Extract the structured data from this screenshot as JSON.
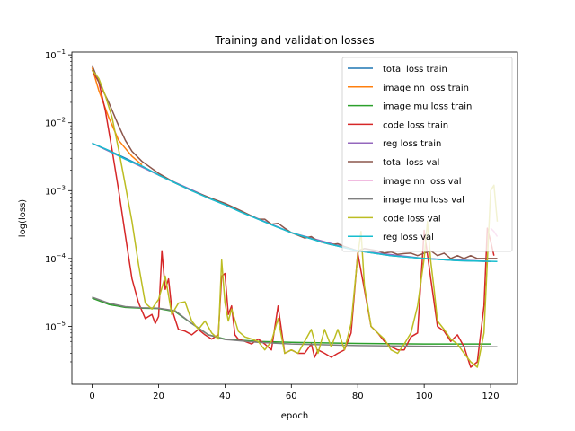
{
  "chart_data": {
    "type": "line",
    "title": "Training and validation losses",
    "xlabel": "epoch",
    "ylabel": "log(loss)",
    "yscale": "log",
    "xlim": [
      -6.1,
      128.1
    ],
    "ylim": [
      1.4e-06,
      0.11
    ],
    "x_ticks": [
      0,
      20,
      40,
      60,
      80,
      100,
      120
    ],
    "y_ticks": [
      {
        "value": 0.1,
        "base": "10",
        "exp": "−1"
      },
      {
        "value": 0.01,
        "base": "10",
        "exp": "−2"
      },
      {
        "value": 0.001,
        "base": "10",
        "exp": "−3"
      },
      {
        "value": 0.0001,
        "base": "10",
        "exp": "−4"
      },
      {
        "value": 1e-05,
        "base": "10",
        "exp": "−5"
      }
    ],
    "grid": false,
    "legend_position": "upper-right",
    "series": [
      {
        "name": "total loss train",
        "color": "#1f77b4",
        "x": [
          0,
          5,
          10,
          15,
          20,
          25,
          30,
          35,
          40,
          45,
          50,
          55,
          60,
          70,
          80,
          90,
          100,
          110,
          120
        ],
        "y": [
          0.005,
          0.0039,
          0.003,
          0.0023,
          0.0017,
          0.0013,
          0.001,
          0.00078,
          0.00062,
          0.00048,
          0.00038,
          0.0003,
          0.00024,
          0.00017,
          0.00013,
          0.00011,
          0.0001,
          9.3e-05,
          9e-05
        ]
      },
      {
        "name": "image nn loss train",
        "color": "#ff7f0e",
        "x": [
          0,
          2,
          5,
          8,
          10,
          12,
          15
        ],
        "y": [
          0.065,
          0.03,
          0.012,
          0.0055,
          0.0042,
          0.0032,
          0.0024
        ]
      },
      {
        "name": "image mu loss train",
        "color": "#2ca02c",
        "x": [
          0,
          5,
          10,
          15,
          20,
          25,
          30,
          35,
          40,
          50,
          60,
          80,
          100,
          120
        ],
        "y": [
          2.6e-05,
          2.1e-05,
          1.9e-05,
          1.85e-05,
          1.83e-05,
          1.65e-05,
          1.1e-05,
          7.5e-06,
          6.5e-06,
          6e-06,
          5.8e-06,
          5.6e-06,
          5.5e-06,
          5.5e-06
        ]
      },
      {
        "name": "code loss train",
        "color": "#d62728",
        "x": [
          0,
          2,
          4,
          6,
          8,
          10,
          12,
          14,
          16,
          18,
          19,
          20,
          21,
          22,
          23,
          24,
          26,
          28,
          30,
          32,
          34,
          36,
          38,
          39,
          40,
          41,
          42,
          43,
          44,
          46,
          48,
          50,
          52,
          54,
          56,
          58,
          60,
          62,
          64,
          66,
          67,
          68,
          70,
          72,
          74,
          76,
          78,
          80,
          82,
          84,
          86,
          88,
          90,
          92,
          94,
          96,
          98,
          100,
          102,
          104,
          106,
          108,
          110,
          112,
          114,
          116,
          118,
          119,
          120,
          121
        ],
        "y": [
          0.06,
          0.04,
          0.015,
          0.004,
          0.001,
          0.00022,
          5e-05,
          2.2e-05,
          1.3e-05,
          1.5e-05,
          1.1e-05,
          1.4e-05,
          0.00013,
          3.5e-05,
          5e-05,
          1.8e-05,
          9e-06,
          8.5e-06,
          7.5e-06,
          9e-06,
          7.5e-06,
          6.5e-06,
          7.5e-06,
          5.5e-05,
          6e-05,
          1.5e-05,
          2e-05,
          7.5e-06,
          6.5e-06,
          6e-06,
          5.5e-06,
          6.5e-06,
          5.5e-06,
          4.5e-06,
          2e-05,
          4e-06,
          4.5e-06,
          4e-06,
          4e-06,
          5.5e-06,
          3.5e-06,
          4.5e-06,
          4e-06,
          3.5e-06,
          4e-06,
          4.5e-06,
          8e-06,
          0.00012,
          3.5e-05,
          1e-05,
          8e-06,
          6e-06,
          5e-06,
          4.5e-06,
          4.5e-06,
          7e-06,
          8e-06,
          0.00026,
          5e-05,
          1e-05,
          8.5e-06,
          6e-06,
          7.5e-06,
          5e-06,
          2.5e-06,
          3e-06,
          2e-05,
          0.00028,
          0.00018,
          0.00011
        ]
      },
      {
        "name": "reg loss train",
        "color": "#9467bd",
        "x": [
          0,
          20,
          40,
          60,
          80,
          100,
          120
        ],
        "y": [
          0.005,
          0.0017,
          0.00062,
          0.00024,
          0.00013,
          0.0001,
          9e-05
        ]
      },
      {
        "name": "total loss val",
        "color": "#8c564b",
        "x": [
          0,
          2,
          5,
          8,
          10,
          12,
          15,
          20,
          25,
          30,
          35,
          40,
          45,
          50,
          52,
          54,
          56,
          58,
          60,
          62,
          64,
          66,
          68,
          70,
          72,
          74,
          76,
          78,
          80,
          82,
          84,
          86,
          88,
          90,
          92,
          94,
          96,
          98,
          100,
          102,
          104,
          106,
          108,
          110,
          112,
          114,
          116,
          118,
          120,
          122
        ],
        "y": [
          0.07,
          0.04,
          0.02,
          0.009,
          0.0055,
          0.0038,
          0.0027,
          0.0018,
          0.0013,
          0.001,
          0.0008,
          0.00065,
          0.0005,
          0.00038,
          0.00038,
          0.00032,
          0.00033,
          0.00028,
          0.00024,
          0.00022,
          0.0002,
          0.00021,
          0.00018,
          0.00017,
          0.00016,
          0.000165,
          0.00015,
          0.00014,
          0.00013,
          0.00014,
          0.000135,
          0.00013,
          0.00012,
          0.000125,
          0.000115,
          0.000118,
          0.00012,
          0.00011,
          0.00012,
          0.00013,
          0.00011,
          0.00012,
          0.0001,
          0.00011,
          0.0001,
          0.00011,
          0.0001,
          0.0001,
          0.0001,
          0.0001
        ]
      },
      {
        "name": "image nn loss val",
        "color": "#e377c2",
        "x": [
          120,
          121,
          122
        ],
        "y": [
          0.00028,
          0.00025,
          0.00021
        ]
      },
      {
        "name": "image mu loss val",
        "color": "#7f7f7f",
        "x": [
          0,
          5,
          10,
          15,
          20,
          25,
          30,
          35,
          40,
          50,
          60,
          80,
          100,
          122
        ],
        "y": [
          2.7e-05,
          2.2e-05,
          1.95e-05,
          1.88e-05,
          1.85e-05,
          1.7e-05,
          1.1e-05,
          7.5e-06,
          6.4e-06,
          5.8e-06,
          5.5e-06,
          5.2e-06,
          5.1e-06,
          5e-06
        ]
      },
      {
        "name": "code loss val",
        "color": "#bcbd22",
        "x": [
          0,
          2,
          4,
          6,
          8,
          10,
          12,
          14,
          16,
          18,
          20,
          22,
          24,
          26,
          28,
          30,
          32,
          34,
          36,
          38,
          39,
          40,
          41,
          42,
          44,
          46,
          48,
          50,
          52,
          54,
          56,
          58,
          60,
          62,
          64,
          66,
          68,
          70,
          72,
          74,
          76,
          78,
          80,
          81,
          82,
          84,
          86,
          88,
          90,
          92,
          94,
          96,
          98,
          100,
          101,
          102,
          103,
          104,
          106,
          108,
          110,
          112,
          114,
          116,
          118,
          120,
          121,
          122
        ],
        "y": [
          0.06,
          0.045,
          0.025,
          0.012,
          0.004,
          0.0012,
          0.00035,
          8e-05,
          2.2e-05,
          1.8e-05,
          2.5e-05,
          5.5e-05,
          1.5e-05,
          2.2e-05,
          2.3e-05,
          1.2e-05,
          9e-06,
          1.2e-05,
          8e-06,
          6.5e-06,
          9.5e-05,
          2.2e-05,
          1.2e-05,
          1.8e-05,
          8.5e-06,
          7e-06,
          6.5e-06,
          6e-06,
          4.5e-06,
          6e-06,
          1.3e-05,
          4e-06,
          4.5e-06,
          4e-06,
          6e-06,
          9e-06,
          4e-06,
          9e-06,
          5e-06,
          9e-06,
          4.5e-06,
          1.1e-05,
          0.00011,
          0.00025,
          4e-05,
          1e-05,
          8e-06,
          6.5e-06,
          4.5e-06,
          4e-06,
          5.5e-06,
          8e-06,
          2e-05,
          0.0001,
          0.00035,
          9e-05,
          3.5e-05,
          1.2e-05,
          9e-06,
          6.5e-06,
          5.5e-06,
          4e-06,
          3e-06,
          2.5e-06,
          8e-06,
          0.001,
          0.0012,
          0.00035
        ]
      },
      {
        "name": "reg loss val",
        "color": "#17becf",
        "x": [
          0,
          5,
          10,
          15,
          20,
          25,
          30,
          35,
          40,
          45,
          50,
          55,
          60,
          70,
          80,
          90,
          100,
          110,
          122
        ],
        "y": [
          0.005,
          0.0039,
          0.0029,
          0.0023,
          0.0017,
          0.0013,
          0.001,
          0.00078,
          0.00062,
          0.00048,
          0.00038,
          0.0003,
          0.00024,
          0.00017,
          0.00013,
          0.00011,
          0.0001,
          9.3e-05,
          9e-05
        ]
      }
    ]
  }
}
